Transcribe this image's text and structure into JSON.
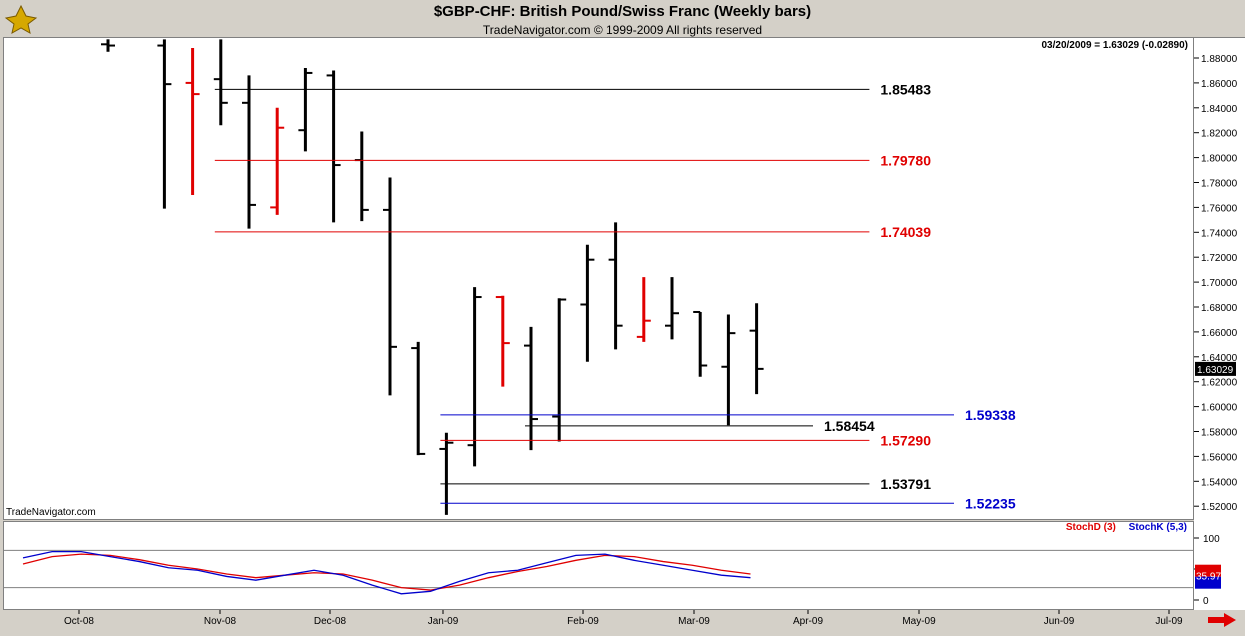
{
  "header": {
    "title": "$GBP-CHF:  British Pound/Swiss Franc  (Weekly bars)",
    "subtitle": "TradeNavigator.com © 1999-2009 All rights reserved"
  },
  "readout": "03/20/2009 = 1.63029 (-0.02890)",
  "watermark": "TradeNavigator.com",
  "legend": {
    "stochd": "StochD (3)",
    "stochk": "StochK (5,3)"
  },
  "colors": {
    "up": "#000000",
    "down": "#e00000",
    "stochk": "#0000cc",
    "stochd": "#e00000",
    "level_blue": "#0000cc",
    "level_black": "#000000",
    "level_red": "#e00000"
  },
  "chart_data": {
    "type": "ohlc",
    "ylim": [
      1.51,
      1.89
    ],
    "yticks": [
      "1.88000",
      "1.86000",
      "1.84000",
      "1.82000",
      "1.80000",
      "1.78000",
      "1.76000",
      "1.74000",
      "1.72000",
      "1.70000",
      "1.68000",
      "1.66000",
      "1.64000",
      "1.62000",
      "1.60000",
      "1.58000",
      "1.56000",
      "1.54000",
      "1.52000"
    ],
    "last_price": "1.63029",
    "xticks": [
      "Oct-08",
      "Nov-08",
      "Dec-08",
      "Jan-09",
      "Feb-09",
      "Mar-09",
      "Apr-09",
      "May-09",
      "Jun-09",
      "Jul-09"
    ],
    "bars": [
      {
        "i": 0,
        "o": 1.891,
        "h": 1.895,
        "l": 1.885,
        "c": 1.89,
        "color": "black"
      },
      {
        "i": 2,
        "o": 1.89,
        "h": 1.895,
        "l": 1.759,
        "c": 1.859,
        "color": "black"
      },
      {
        "i": 3,
        "o": 1.86,
        "h": 1.888,
        "l": 1.77,
        "c": 1.851,
        "color": "red"
      },
      {
        "i": 4,
        "o": 1.863,
        "h": 1.895,
        "l": 1.826,
        "c": 1.844,
        "color": "black"
      },
      {
        "i": 5,
        "o": 1.844,
        "h": 1.866,
        "l": 1.743,
        "c": 1.762,
        "color": "black"
      },
      {
        "i": 6,
        "o": 1.76,
        "h": 1.84,
        "l": 1.754,
        "c": 1.824,
        "color": "red"
      },
      {
        "i": 7,
        "o": 1.822,
        "h": 1.872,
        "l": 1.805,
        "c": 1.868,
        "color": "black"
      },
      {
        "i": 8,
        "o": 1.866,
        "h": 1.87,
        "l": 1.748,
        "c": 1.794,
        "color": "black"
      },
      {
        "i": 9,
        "o": 1.798,
        "h": 1.821,
        "l": 1.749,
        "c": 1.758,
        "color": "black"
      },
      {
        "i": 10,
        "o": 1.758,
        "h": 1.784,
        "l": 1.609,
        "c": 1.648,
        "color": "black"
      },
      {
        "i": 11,
        "o": 1.647,
        "h": 1.652,
        "l": 1.561,
        "c": 1.562,
        "color": "black"
      },
      {
        "i": 12,
        "o": 1.566,
        "h": 1.579,
        "l": 1.513,
        "c": 1.571,
        "color": "black"
      },
      {
        "i": 13,
        "o": 1.569,
        "h": 1.696,
        "l": 1.552,
        "c": 1.688,
        "color": "black"
      },
      {
        "i": 14,
        "o": 1.688,
        "h": 1.689,
        "l": 1.616,
        "c": 1.651,
        "color": "red"
      },
      {
        "i": 15,
        "o": 1.649,
        "h": 1.664,
        "l": 1.565,
        "c": 1.59,
        "color": "black"
      },
      {
        "i": 16,
        "o": 1.592,
        "h": 1.687,
        "l": 1.572,
        "c": 1.686,
        "color": "black"
      },
      {
        "i": 17,
        "o": 1.682,
        "h": 1.73,
        "l": 1.636,
        "c": 1.718,
        "color": "black"
      },
      {
        "i": 18,
        "o": 1.718,
        "h": 1.748,
        "l": 1.646,
        "c": 1.665,
        "color": "black"
      },
      {
        "i": 19,
        "o": 1.656,
        "h": 1.704,
        "l": 1.652,
        "c": 1.669,
        "color": "red"
      },
      {
        "i": 20,
        "o": 1.665,
        "h": 1.704,
        "l": 1.654,
        "c": 1.675,
        "color": "black"
      },
      {
        "i": 21,
        "o": 1.676,
        "h": 1.676,
        "l": 1.624,
        "c": 1.633,
        "color": "black"
      },
      {
        "i": 22,
        "o": 1.632,
        "h": 1.674,
        "l": 1.585,
        "c": 1.659,
        "color": "black"
      },
      {
        "i": 23,
        "o": 1.661,
        "h": 1.683,
        "l": 1.61,
        "c": 1.6303,
        "color": "black"
      }
    ],
    "levels": [
      {
        "value": 1.85483,
        "label": "1.85483",
        "color": "black",
        "x1": 4,
        "x2": 27
      },
      {
        "value": 1.7978,
        "label": "1.79780",
        "color": "red",
        "x1": 4,
        "x2": 27
      },
      {
        "value": 1.74039,
        "label": "1.74039",
        "color": "red",
        "x1": 4,
        "x2": 27
      },
      {
        "value": 1.59338,
        "label": "1.59338",
        "color": "blue",
        "x1": 12,
        "x2": 30
      },
      {
        "value": 1.58454,
        "label": "1.58454",
        "color": "black",
        "x1": 15,
        "x2": 25
      },
      {
        "value": 1.5729,
        "label": "1.57290",
        "color": "red",
        "x1": 12,
        "x2": 27
      },
      {
        "value": 1.53791,
        "label": "1.53791",
        "color": "black",
        "x1": 12,
        "x2": 27
      },
      {
        "value": 1.52235,
        "label": "1.52235",
        "color": "blue",
        "x1": 12,
        "x2": 30
      }
    ],
    "stoch": {
      "ylim": [
        0,
        100
      ],
      "yticks": [
        "100",
        "50",
        "0"
      ],
      "last_value": "35.97",
      "stochk": [
        68,
        78,
        78,
        70,
        62,
        52,
        48,
        38,
        32,
        40,
        48,
        40,
        24,
        10,
        14,
        30,
        44,
        48,
        60,
        72,
        74,
        64,
        56,
        48,
        40,
        36
      ],
      "stochd": [
        58,
        70,
        74,
        72,
        65,
        56,
        50,
        42,
        36,
        40,
        44,
        42,
        32,
        20,
        16,
        24,
        36,
        46,
        54,
        64,
        72,
        70,
        62,
        56,
        48,
        42
      ]
    }
  }
}
